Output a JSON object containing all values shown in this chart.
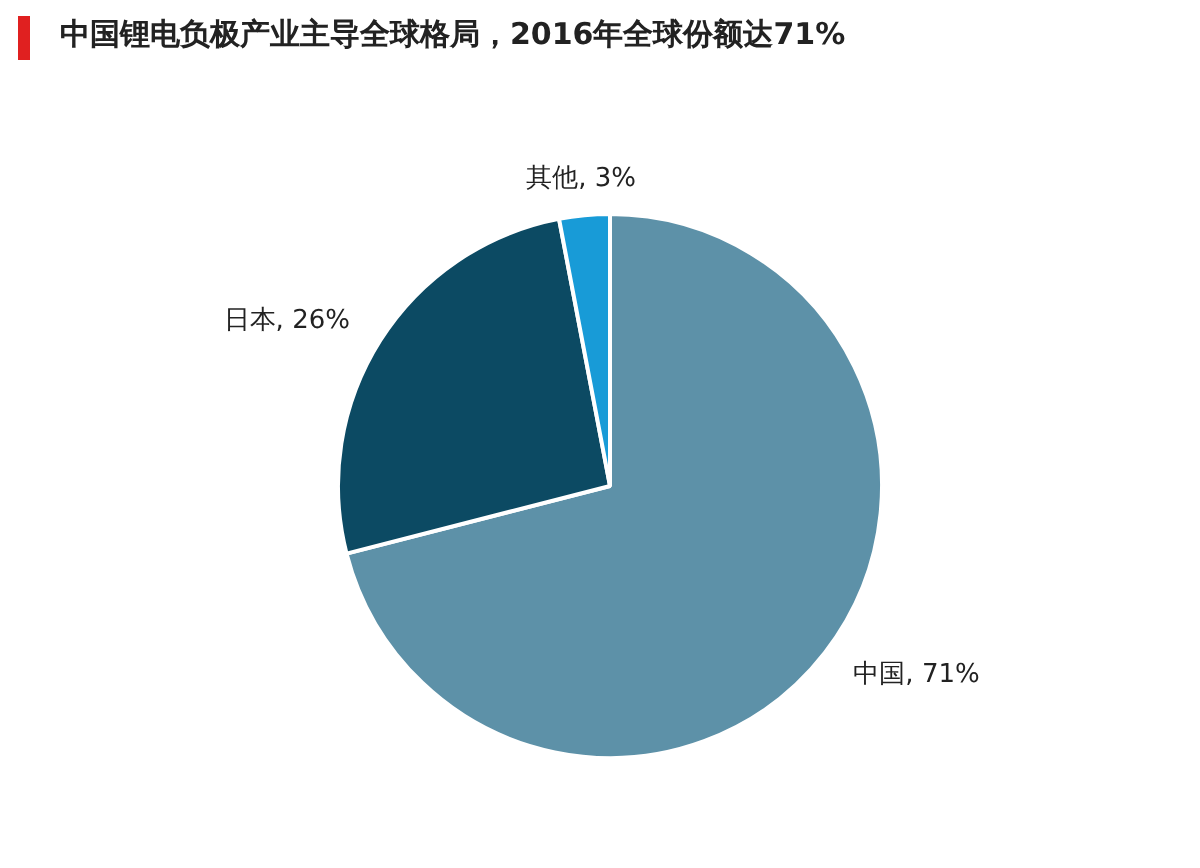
{
  "chart_data": {
    "type": "pie",
    "title": "中国锂电负极产业主导全球格局，2016年全球份额达71%",
    "categories": [
      "中国",
      "日本",
      "其他"
    ],
    "values": [
      71,
      26,
      3
    ],
    "colors": [
      "#5d91a8",
      "#0c4a63",
      "#189bd7"
    ],
    "value_labels": [
      "71%",
      "26%",
      "3%"
    ],
    "legend": false
  }
}
